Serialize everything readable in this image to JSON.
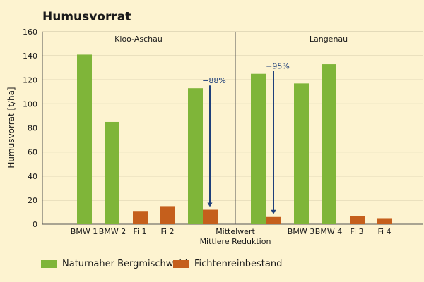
{
  "chart_data": {
    "type": "bar",
    "title": "Humusvorrat",
    "ylabel": "Humusvorrat  [t/ha]",
    "ylim": [
      0,
      160
    ],
    "yticks": [
      0,
      20,
      40,
      60,
      80,
      100,
      120,
      140,
      160
    ],
    "grid": true,
    "legend_position": "bottom",
    "panels": [
      {
        "label": "Kloo-Aschau"
      },
      {
        "label": "Langenau"
      }
    ],
    "series": [
      {
        "name": "Naturnaher Bergmischwald",
        "color": "#7fb539"
      },
      {
        "name": "Fichtenreinbestand",
        "color": "#c55f1c"
      }
    ],
    "bars": [
      {
        "category": "BMW 1",
        "series": 0,
        "value": 141
      },
      {
        "category": "BMW 2",
        "series": 0,
        "value": 85
      },
      {
        "category": "Fi 1",
        "series": 1,
        "value": 11
      },
      {
        "category": "Fi 2",
        "series": 1,
        "value": 15
      },
      {
        "category": "Mittelwert",
        "series": 0,
        "value": 113
      },
      {
        "category": "Mittelwert",
        "series": 1,
        "value": 12
      },
      {
        "category": "Mittelwert",
        "series": 0,
        "value": 125
      },
      {
        "category": "Mittelwert",
        "series": 1,
        "value": 6
      },
      {
        "category": "BMW 3",
        "series": 0,
        "value": 117
      },
      {
        "category": "BMW 4",
        "series": 0,
        "value": 133
      },
      {
        "category": "Fi 3",
        "series": 1,
        "value": 7
      },
      {
        "category": "Fi 4",
        "series": 1,
        "value": 5
      }
    ],
    "category_labels": [
      "BMW 1",
      "BMW 2",
      "Fi 1",
      "Fi 2",
      "BMW 3",
      "BMW 4",
      "Fi 3",
      "Fi 4"
    ],
    "center_labels": [
      "Mittelwert",
      "Mittlere Reduktion"
    ],
    "annotations": [
      {
        "text": "−88%",
        "from": 113,
        "to": 12
      },
      {
        "text": "−95%",
        "from": 125,
        "to": 6
      }
    ]
  }
}
